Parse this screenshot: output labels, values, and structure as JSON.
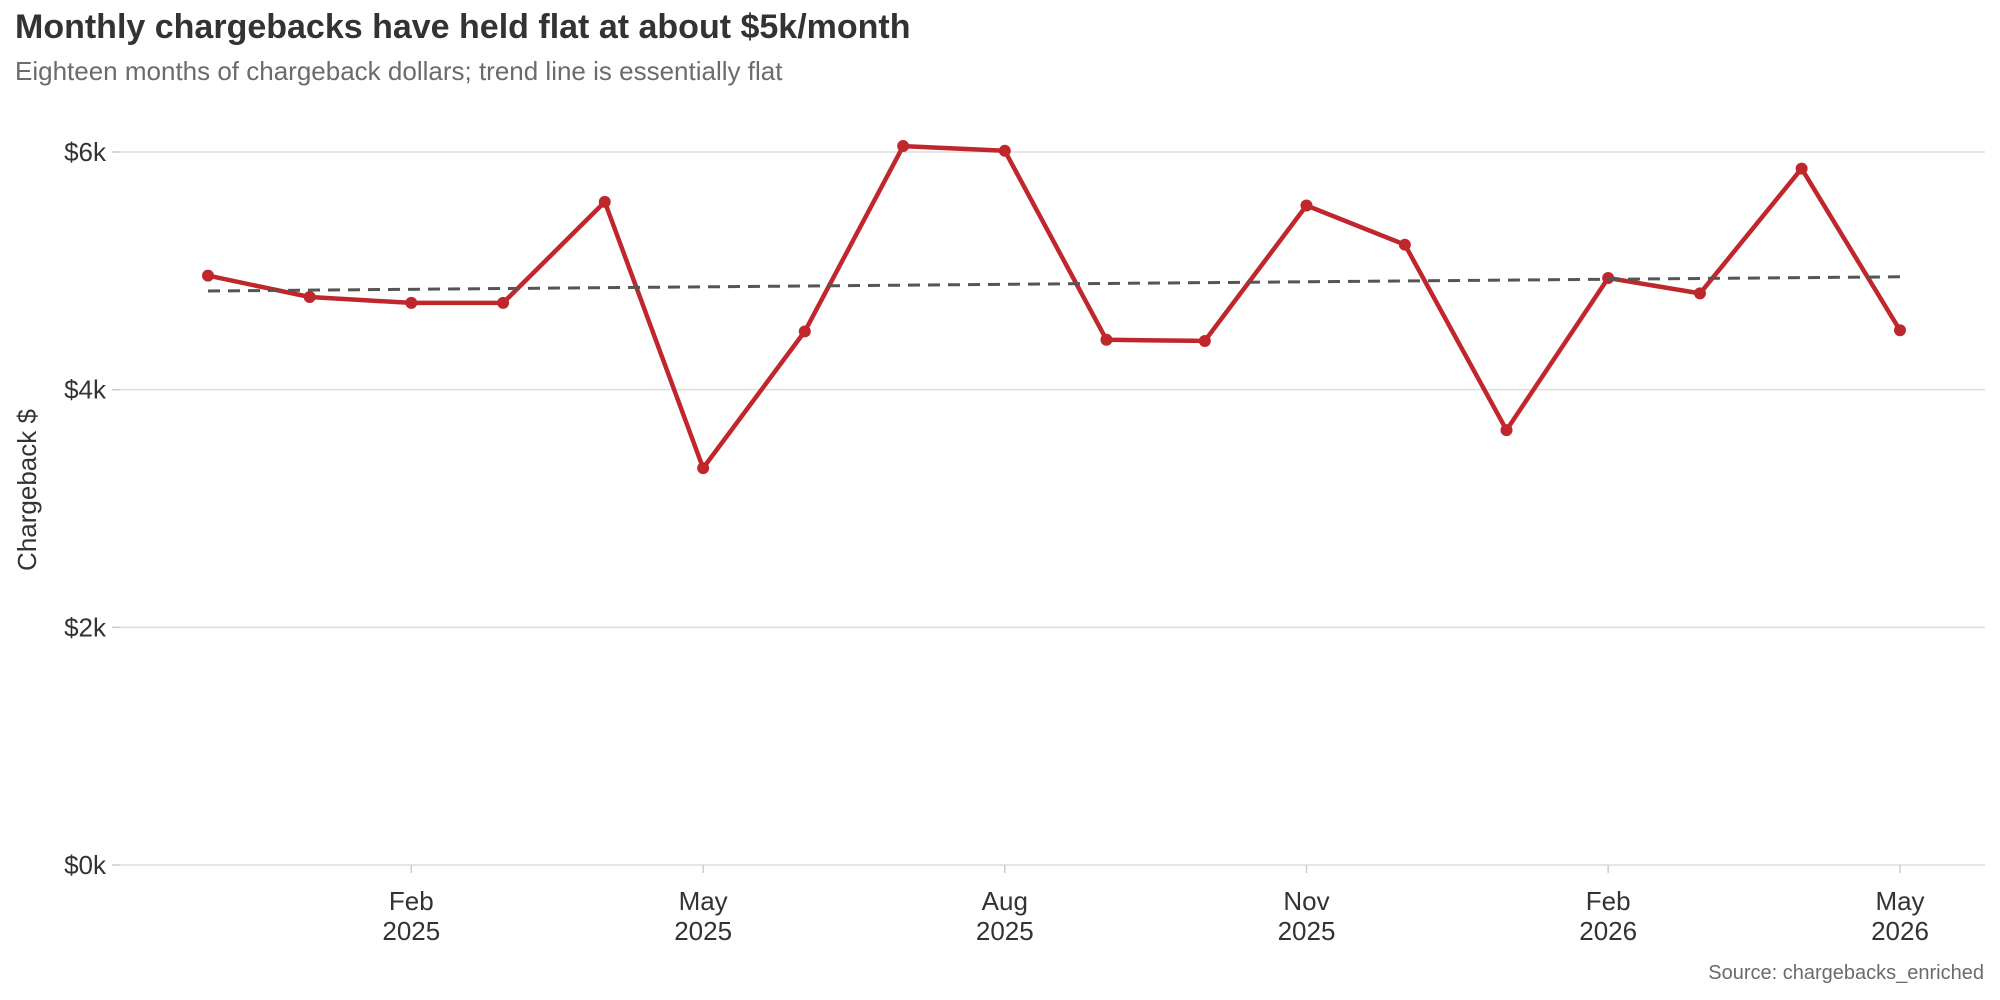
{
  "chart_data": {
    "type": "line",
    "title": "Monthly chargebacks have held flat at about $5k/month",
    "subtitle": "Eighteen months of chargeback dollars; trend line is essentially flat",
    "source": "Source: chargebacks_enriched",
    "xlabel": "",
    "ylabel": "Chargeback $",
    "ylim": [
      0,
      6000
    ],
    "y_ticks": [
      {
        "value": 0,
        "label": "$0k"
      },
      {
        "value": 2000,
        "label": "$2k"
      },
      {
        "value": 4000,
        "label": "$4k"
      },
      {
        "value": 6000,
        "label": "$6k"
      }
    ],
    "x_ticks": [
      {
        "date": "2025-02-01",
        "line1": "Feb",
        "line2": "2025"
      },
      {
        "date": "2025-05-01",
        "line1": "May",
        "line2": "2025"
      },
      {
        "date": "2025-08-01",
        "line1": "Aug",
        "line2": "2025"
      },
      {
        "date": "2025-11-01",
        "line1": "Nov",
        "line2": "2025"
      },
      {
        "date": "2026-02-01",
        "line1": "Feb",
        "line2": "2026"
      },
      {
        "date": "2026-05-01",
        "line1": "May",
        "line2": "2026"
      }
    ],
    "grid": "horizontal",
    "series": [
      {
        "color": "#c0272d",
        "style": "solid-with-markers",
        "x": [
          "2024-12-01",
          "2025-01-01",
          "2025-02-01",
          "2025-03-01",
          "2025-04-01",
          "2025-05-01",
          "2025-06-01",
          "2025-07-01",
          "2025-08-01",
          "2025-09-01",
          "2025-10-01",
          "2025-11-01",
          "2025-12-01",
          "2026-01-01",
          "2026-02-01",
          "2026-03-01",
          "2026-04-01",
          "2026-05-01"
        ],
        "values": [
          4960,
          4780,
          4730,
          4730,
          5580,
          3340,
          4490,
          6050,
          6010,
          4420,
          4410,
          5550,
          5220,
          3660,
          4940,
          4810,
          5860,
          4500
        ]
      },
      {
        "color": "#555555",
        "style": "dashed",
        "x": [
          "2024-12-01",
          "2026-05-01"
        ],
        "values": [
          4830,
          4950
        ]
      }
    ]
  }
}
